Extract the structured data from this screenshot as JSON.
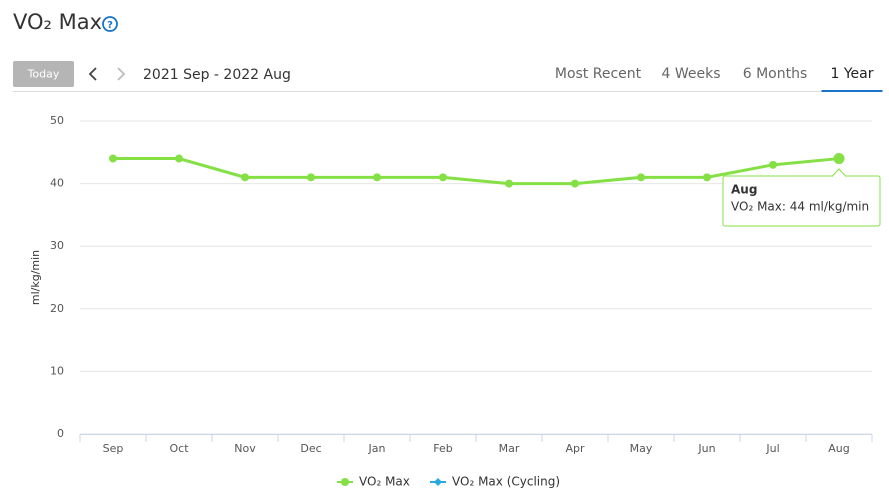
{
  "header": {
    "title": "VO₂ Max",
    "help": "?"
  },
  "toolbar": {
    "today": "Today",
    "range": "2021 Sep - 2022 Aug",
    "tabs": [
      "Most Recent",
      "4 Weeks",
      "6 Months",
      "1 Year"
    ],
    "selected_tab": 3
  },
  "chart_data": {
    "type": "line",
    "y_label": "ml/kg/min",
    "categories": [
      "Sep",
      "Oct",
      "Nov",
      "Dec",
      "Jan",
      "Feb",
      "Mar",
      "Apr",
      "May",
      "Jun",
      "Jul",
      "Aug"
    ],
    "series": [
      {
        "name": "VO₂ Max",
        "color": "#84e045",
        "values": [
          44,
          44,
          41,
          41,
          41,
          41,
          40,
          40,
          41,
          41,
          43,
          44
        ]
      },
      {
        "name": "VO₂ Max (Cycling)",
        "color": "#29a9e0",
        "values": [
          null,
          null,
          null,
          null,
          null,
          null,
          null,
          null,
          null,
          null,
          null,
          null
        ]
      }
    ],
    "ylim": [
      0,
      50
    ],
    "yticks": [
      0,
      10,
      20,
      30,
      40,
      50
    ],
    "grid": true,
    "legend": "bottom",
    "tooltip": {
      "index": 11,
      "title": "Aug",
      "text": "VO₂ Max: 44 ml/kg/min"
    }
  }
}
